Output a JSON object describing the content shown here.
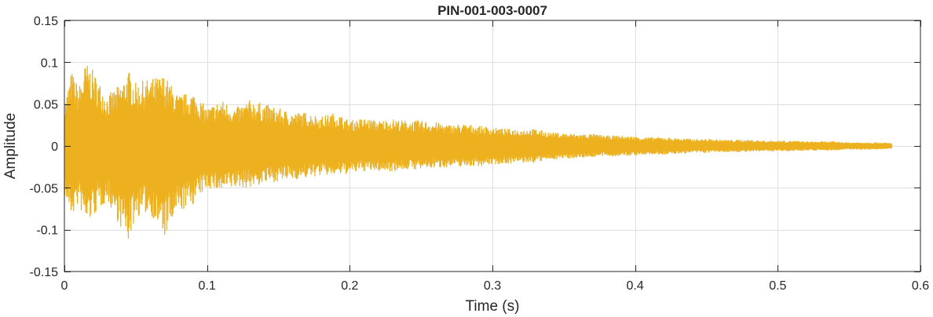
{
  "chart_data": {
    "type": "line",
    "title": "PIN-001-003-0007",
    "xlabel": "Time (s)",
    "ylabel": "Amplitude",
    "xlim": [
      0,
      0.6
    ],
    "ylim": [
      -0.15,
      0.15
    ],
    "xticks": [
      0,
      0.1,
      0.2,
      0.3,
      0.4,
      0.5,
      0.6
    ],
    "xtick_labels": [
      "0",
      "0.1",
      "0.2",
      "0.3",
      "0.4",
      "0.5",
      "0.6"
    ],
    "yticks": [
      -0.15,
      -0.1,
      -0.05,
      0,
      0.05,
      0.1,
      0.15
    ],
    "ytick_labels": [
      "-0.15",
      "-0.1",
      "-0.05",
      "0",
      "0.05",
      "0.1",
      "0.15"
    ],
    "grid": true,
    "series_color": "#EDB120",
    "series": [
      {
        "name": "",
        "envelope_time": [
          0,
          0.005,
          0.01,
          0.015,
          0.02,
          0.03,
          0.04,
          0.045,
          0.05,
          0.06,
          0.07,
          0.08,
          0.09,
          0.1,
          0.11,
          0.12,
          0.13,
          0.14,
          0.15,
          0.16,
          0.17,
          0.18,
          0.19,
          0.2,
          0.21,
          0.22,
          0.23,
          0.24,
          0.25,
          0.26,
          0.27,
          0.28,
          0.29,
          0.3,
          0.31,
          0.32,
          0.33,
          0.34,
          0.35,
          0.36,
          0.37,
          0.38,
          0.39,
          0.4,
          0.41,
          0.42,
          0.43,
          0.44,
          0.45,
          0.46,
          0.47,
          0.48,
          0.49,
          0.5,
          0.51,
          0.52,
          0.53,
          0.54,
          0.55,
          0.56,
          0.57,
          0.58
        ],
        "envelope_upper": [
          0.05,
          0.09,
          0.07,
          0.1,
          0.09,
          0.06,
          0.075,
          0.09,
          0.075,
          0.08,
          0.085,
          0.06,
          0.065,
          0.045,
          0.055,
          0.045,
          0.055,
          0.05,
          0.045,
          0.04,
          0.04,
          0.035,
          0.04,
          0.03,
          0.033,
          0.03,
          0.032,
          0.03,
          0.03,
          0.028,
          0.025,
          0.026,
          0.024,
          0.022,
          0.02,
          0.02,
          0.02,
          0.016,
          0.015,
          0.014,
          0.014,
          0.012,
          0.012,
          0.011,
          0.01,
          0.01,
          0.009,
          0.008,
          0.008,
          0.007,
          0.007,
          0.007,
          0.006,
          0.006,
          0.006,
          0.005,
          0.005,
          0.005,
          0.004,
          0.004,
          0.004,
          0.003
        ],
        "envelope_lower": [
          -0.06,
          -0.085,
          -0.07,
          -0.095,
          -0.085,
          -0.065,
          -0.1,
          -0.115,
          -0.085,
          -0.08,
          -0.11,
          -0.08,
          -0.07,
          -0.05,
          -0.055,
          -0.05,
          -0.05,
          -0.045,
          -0.042,
          -0.04,
          -0.038,
          -0.035,
          -0.035,
          -0.033,
          -0.03,
          -0.03,
          -0.03,
          -0.028,
          -0.028,
          -0.026,
          -0.025,
          -0.024,
          -0.024,
          -0.022,
          -0.021,
          -0.02,
          -0.02,
          -0.016,
          -0.015,
          -0.014,
          -0.013,
          -0.012,
          -0.012,
          -0.011,
          -0.01,
          -0.01,
          -0.009,
          -0.008,
          -0.008,
          -0.007,
          -0.007,
          -0.007,
          -0.006,
          -0.006,
          -0.006,
          -0.005,
          -0.005,
          -0.005,
          -0.004,
          -0.004,
          -0.004,
          -0.003
        ]
      }
    ]
  }
}
